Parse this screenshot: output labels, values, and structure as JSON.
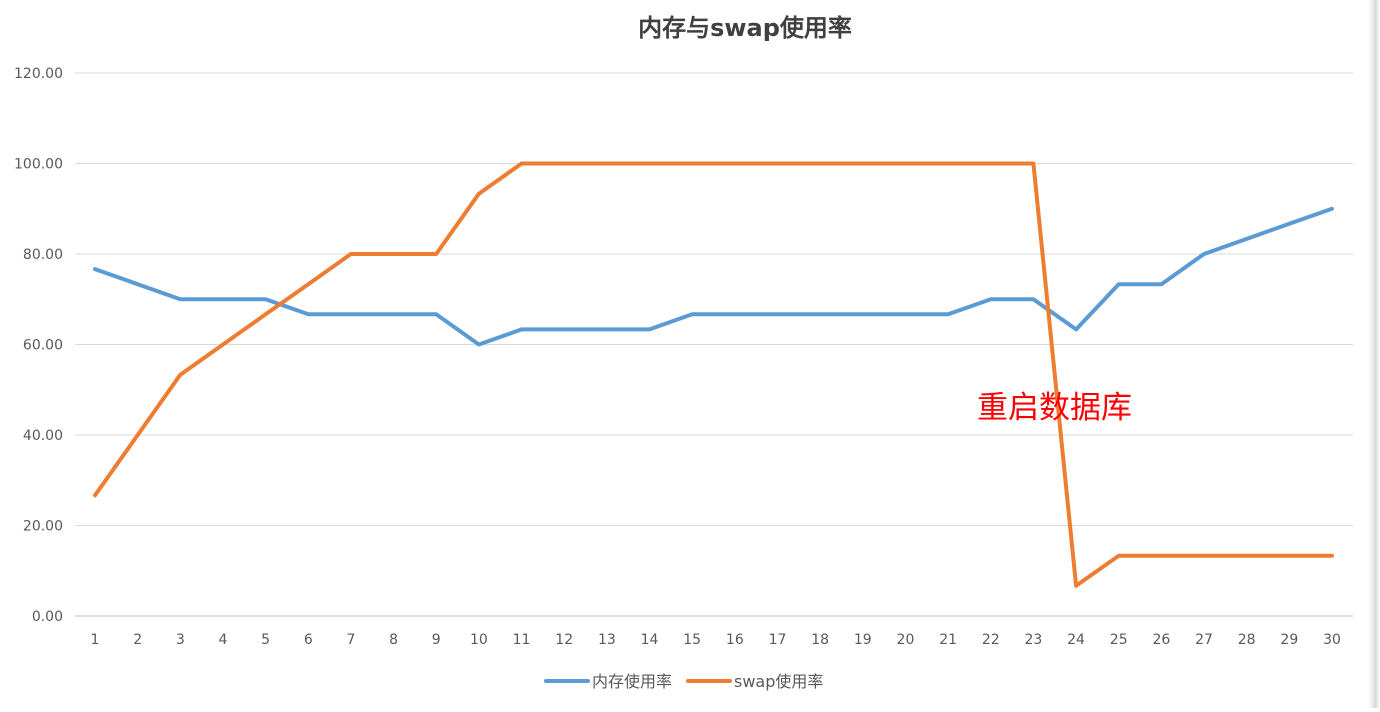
{
  "chart_data": {
    "type": "line",
    "title": "内存与swap使用率",
    "xlabel": "",
    "ylabel": "",
    "categories": [
      "1",
      "2",
      "3",
      "4",
      "5",
      "6",
      "7",
      "8",
      "9",
      "10",
      "11",
      "12",
      "13",
      "14",
      "15",
      "16",
      "17",
      "18",
      "19",
      "20",
      "21",
      "22",
      "23",
      "24",
      "25",
      "26",
      "27",
      "28",
      "29",
      "30"
    ],
    "y_ticks": [
      "0.00",
      "20.00",
      "40.00",
      "60.00",
      "80.00",
      "100.00",
      "120.00"
    ],
    "ylim": [
      0,
      120
    ],
    "grid": true,
    "legend_position": "bottom",
    "series": [
      {
        "name": "内存使用率",
        "color": "#5B9BD5",
        "values": [
          76.67,
          73.33,
          70.0,
          70.0,
          70.0,
          66.67,
          66.67,
          66.67,
          66.67,
          60.0,
          63.33,
          63.33,
          63.33,
          63.33,
          66.67,
          66.67,
          66.67,
          66.67,
          66.67,
          66.67,
          66.67,
          70.0,
          70.0,
          63.33,
          73.33,
          73.33,
          80.0,
          83.33,
          86.67,
          90.0
        ]
      },
      {
        "name": "swap使用率",
        "color": "#ED7D31",
        "values": [
          26.67,
          40.0,
          53.33,
          60.0,
          66.67,
          73.33,
          80.0,
          80.0,
          80.0,
          93.33,
          100.0,
          100.0,
          100.0,
          100.0,
          100.0,
          100.0,
          100.0,
          100.0,
          100.0,
          100.0,
          100.0,
          100.0,
          100.0,
          6.67,
          13.33,
          13.33,
          13.33,
          13.33,
          13.33,
          13.33
        ]
      }
    ],
    "annotations": [
      {
        "text": "重启数据库",
        "color": "#FF0000",
        "near_x": "23.5",
        "near_y": 45
      }
    ]
  }
}
